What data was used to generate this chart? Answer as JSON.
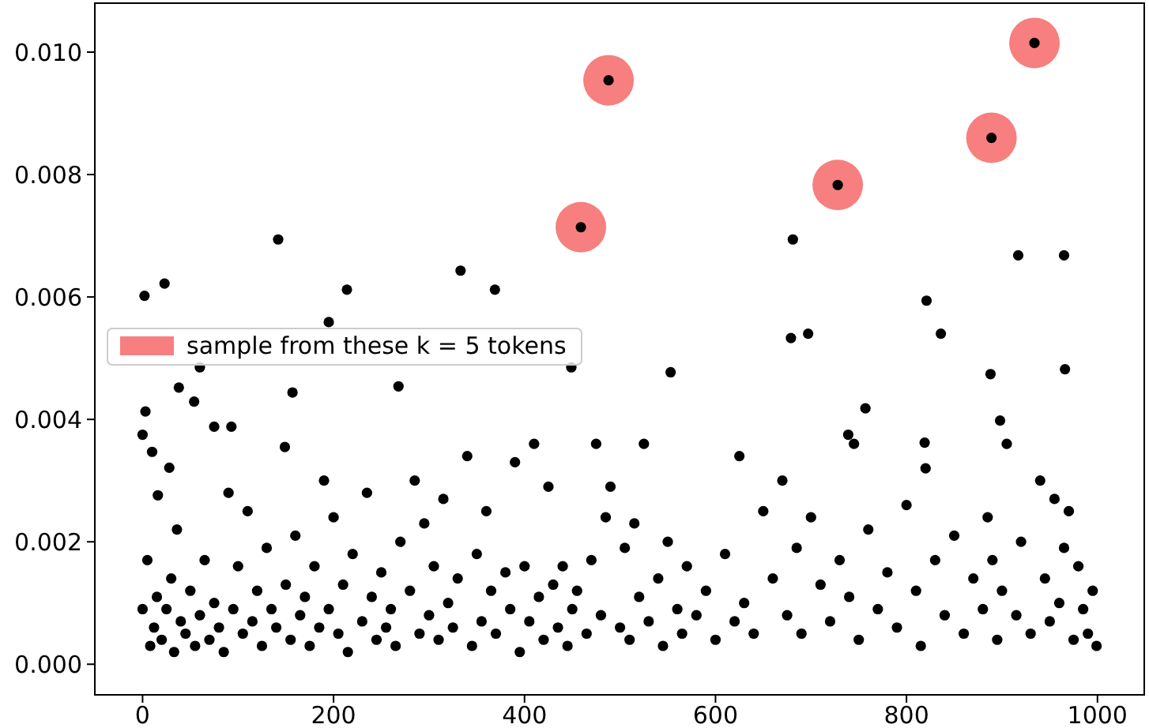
{
  "chart_data": {
    "type": "scatter",
    "xlim": [
      -50,
      1049
    ],
    "ylim": [
      -0.0005,
      0.0108
    ],
    "xticks": [
      0,
      200,
      400,
      600,
      800,
      1000
    ],
    "yticks": [
      {
        "value": 0,
        "label": "0.000"
      },
      {
        "value": 0.002,
        "label": "0.002"
      },
      {
        "value": 0.004,
        "label": "0.004"
      },
      {
        "value": 0.006,
        "label": "0.006"
      },
      {
        "value": 0.008,
        "label": "0.008"
      },
      {
        "value": 0.01,
        "label": "0.010"
      }
    ],
    "grid": false,
    "legend": "left",
    "marker": "circle",
    "series": [
      {
        "name": "sample from these k = 5 tokens",
        "color": "#f77f7f",
        "x": [
          459,
          488,
          728,
          889,
          934
        ],
        "values": [
          0.00714,
          0.00954,
          0.00783,
          0.0086,
          0.01015
        ]
      },
      {
        "color": "#000000",
        "x": [
          0,
          5,
          8,
          12,
          15,
          20,
          25,
          30,
          33,
          36,
          40,
          45,
          50,
          55,
          60,
          65,
          70,
          75,
          80,
          85,
          90,
          95,
          100,
          105,
          110,
          115,
          120,
          125,
          130,
          135,
          140,
          150,
          155,
          160,
          165,
          170,
          175,
          180,
          185,
          190,
          195,
          200,
          205,
          210,
          215,
          220,
          230,
          235,
          240,
          245,
          250,
          255,
          260,
          265,
          270,
          280,
          285,
          290,
          295,
          300,
          305,
          310,
          315,
          320,
          325,
          330,
          340,
          345,
          350,
          355,
          360,
          365,
          370,
          380,
          385,
          390,
          395,
          400,
          405,
          410,
          415,
          420,
          425,
          430,
          435,
          440,
          445,
          450,
          455,
          465,
          470,
          475,
          480,
          485,
          490,
          500,
          505,
          510,
          515,
          520,
          525,
          530,
          540,
          545,
          550,
          560,
          565,
          570,
          580,
          590,
          600,
          610,
          620,
          625,
          630,
          640,
          650,
          660,
          670,
          675,
          685,
          690,
          700,
          710,
          720,
          730,
          740,
          745,
          750,
          760,
          770,
          780,
          790,
          800,
          810,
          815,
          820,
          830,
          840,
          850,
          860,
          870,
          880,
          885,
          890,
          895,
          900,
          905,
          915,
          920,
          930,
          940,
          945,
          950,
          955,
          960,
          965,
          970,
          975,
          980,
          985,
          990,
          995,
          999,
          2,
          3,
          0,
          23,
          10,
          16,
          28,
          38,
          142,
          54,
          60,
          75,
          93,
          157,
          149,
          195,
          214,
          268,
          333,
          369,
          449,
          553,
          681,
          697,
          679,
          821,
          836,
          965,
          917,
          888,
          898,
          966,
          757,
          739,
          819,
          459,
          488,
          728,
          889,
          934
        ],
        "values": [
          0.0009,
          0.0017,
          0.0003,
          0.0006,
          0.0011,
          0.0004,
          0.0009,
          0.0014,
          0.0002,
          0.0022,
          0.0007,
          0.0005,
          0.0012,
          0.0003,
          0.0008,
          0.0017,
          0.0004,
          0.001,
          0.0006,
          0.0002,
          0.0028,
          0.0009,
          0.0016,
          0.0005,
          0.0025,
          0.0007,
          0.0012,
          0.0003,
          0.0019,
          0.0009,
          0.0006,
          0.0013,
          0.0004,
          0.0021,
          0.0008,
          0.0011,
          0.0003,
          0.0016,
          0.0006,
          0.003,
          0.0009,
          0.0024,
          0.0005,
          0.0013,
          0.0002,
          0.0018,
          0.0007,
          0.0028,
          0.0011,
          0.0004,
          0.0015,
          0.0006,
          0.0009,
          0.0003,
          0.002,
          0.0012,
          0.003,
          0.0005,
          0.0023,
          0.0008,
          0.0016,
          0.0004,
          0.0027,
          0.001,
          0.0006,
          0.0014,
          0.0034,
          0.0003,
          0.0018,
          0.0007,
          0.0025,
          0.0012,
          0.0005,
          0.0015,
          0.0009,
          0.0033,
          0.0002,
          0.0016,
          0.0007,
          0.0036,
          0.0011,
          0.0004,
          0.0029,
          0.0013,
          0.0006,
          0.0016,
          0.0003,
          0.0009,
          0.0012,
          0.0005,
          0.0017,
          0.0036,
          0.0008,
          0.0024,
          0.0029,
          0.0006,
          0.0019,
          0.0004,
          0.0023,
          0.0011,
          0.0036,
          0.0007,
          0.0014,
          0.0003,
          0.002,
          0.0009,
          0.0005,
          0.0016,
          0.0008,
          0.0012,
          0.0004,
          0.0018,
          0.0007,
          0.0034,
          0.001,
          0.0005,
          0.0025,
          0.0014,
          0.003,
          0.0008,
          0.0019,
          0.0005,
          0.0024,
          0.0013,
          0.0007,
          0.0017,
          0.0011,
          0.0036,
          0.0004,
          0.0022,
          0.0009,
          0.0015,
          0.0006,
          0.0026,
          0.0012,
          0.0003,
          0.0032,
          0.0017,
          0.0008,
          0.0021,
          0.0005,
          0.0014,
          0.0009,
          0.0024,
          0.0017,
          0.0004,
          0.0012,
          0.0036,
          0.0008,
          0.002,
          0.0005,
          0.003,
          0.0014,
          0.0007,
          0.0027,
          0.001,
          0.0019,
          0.0025,
          0.0004,
          0.0016,
          0.0009,
          0.0005,
          0.0012,
          0.0003,
          0.00602,
          0.00413,
          0.00375,
          0.00622,
          0.00347,
          0.00276,
          0.00321,
          0.00452,
          0.00694,
          0.00429,
          0.00485,
          0.00388,
          0.00388,
          0.00444,
          0.00355,
          0.00559,
          0.00612,
          0.00454,
          0.00643,
          0.00612,
          0.00485,
          0.00477,
          0.00694,
          0.0054,
          0.00533,
          0.00594,
          0.0054,
          0.00668,
          0.00668,
          0.00474,
          0.00398,
          0.00482,
          0.00418,
          0.00375,
          0.00362,
          0.00714,
          0.00954,
          0.00783,
          0.0086,
          0.01015
        ]
      }
    ]
  }
}
